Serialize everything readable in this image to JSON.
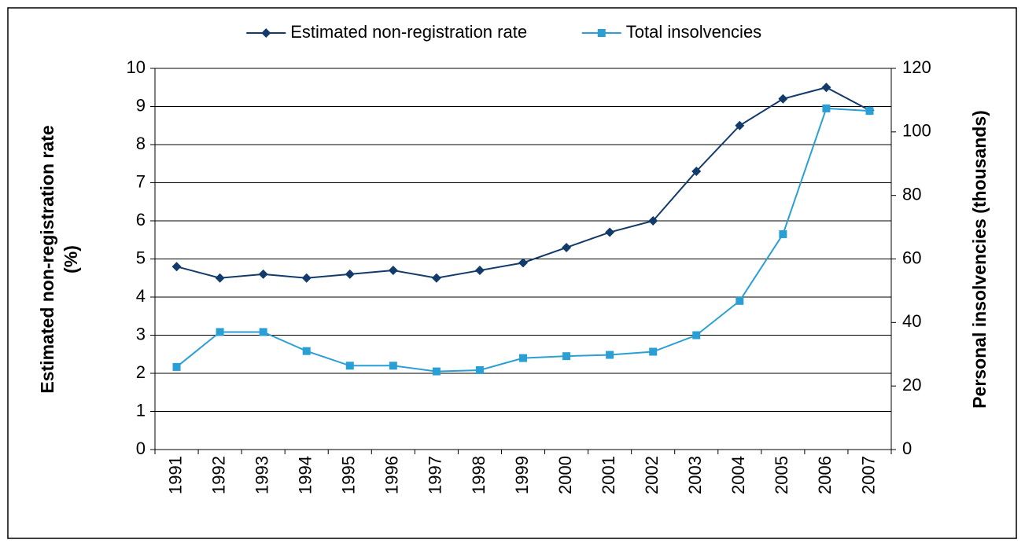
{
  "chart_data": {
    "type": "line",
    "categories": [
      "1991",
      "1992",
      "1993",
      "1994",
      "1995",
      "1996",
      "1997",
      "1998",
      "1999",
      "2000",
      "2001",
      "2002",
      "2003",
      "2004",
      "2005",
      "2006",
      "2007"
    ],
    "series": [
      {
        "name": "Estimated non-registration rate",
        "color": "#123a6a",
        "marker": "diamond",
        "values": [
          4.8,
          4.5,
          4.6,
          4.5,
          4.6,
          4.7,
          4.5,
          4.7,
          4.9,
          5.3,
          5.7,
          6.0,
          7.3,
          8.5,
          9.2,
          9.5,
          8.9
        ]
      },
      {
        "name": "Total insolvencies",
        "color": "#2a9fd6",
        "marker": "square",
        "axis": "y2",
        "values": [
          26,
          37,
          37,
          31,
          26.4,
          26.4,
          24.6,
          25,
          28.8,
          29.4,
          29.8,
          30.8,
          36,
          46.8,
          67.8,
          107.4,
          106.6
        ]
      }
    ],
    "ylabel": [
      "Estimated non-registration rate",
      "(%)"
    ],
    "y2label": "Personal insolvencies (thousands)",
    "ylim": [
      0,
      10
    ],
    "yticks": [
      0,
      1,
      2,
      3,
      4,
      5,
      6,
      7,
      8,
      9,
      10
    ],
    "y2lim": [
      0,
      120
    ],
    "y2ticks": [
      0,
      20,
      40,
      60,
      80,
      100,
      120
    ],
    "grid": true,
    "legend": "top"
  }
}
